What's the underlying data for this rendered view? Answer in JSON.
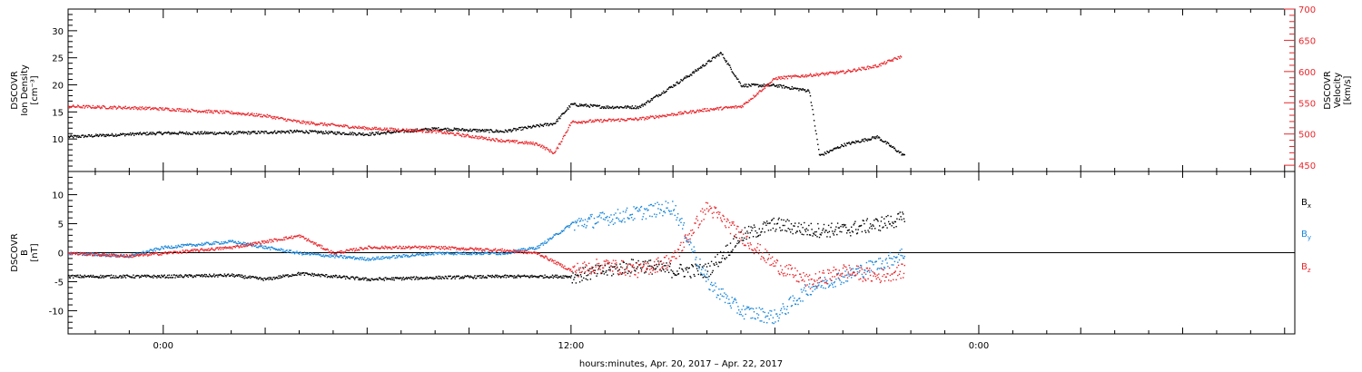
{
  "figure": {
    "xlabel": "hours:minutes, Apr. 20, 2017 – Apr. 22, 2017",
    "colors": {
      "axis": "#000000",
      "black_series": "#000000",
      "red_series": "#e8262b",
      "blue_series": "#1a86d8"
    }
  },
  "chart_data": [
    {
      "type": "scatter",
      "panel": "top",
      "xlabel": "hours:minutes, Apr. 20, 2017 – Apr. 22, 2017",
      "x_unit": "hours relative to Apr. 21, 2017 00:00",
      "xlim": [
        -2.8,
        33.3
      ],
      "x_ticks": [
        0,
        12,
        24
      ],
      "x_ticklabels": [
        "0:00",
        "12:00",
        "0:00"
      ],
      "left_axis": {
        "label_lines": [
          "DSCOVR",
          "Ion Density",
          "[cm⁻³]"
        ],
        "ylim": [
          4,
          34
        ],
        "ticks": [
          10,
          15,
          20,
          25,
          30
        ],
        "ticklabels": [
          "10",
          "15",
          "20",
          "25",
          "30"
        ]
      },
      "right_axis": {
        "label_lines": [
          "DSCOVR",
          "Velocity",
          "[km/s]"
        ],
        "ylim": [
          440,
          700
        ],
        "ticks": [
          450,
          500,
          550,
          600,
          650,
          700
        ],
        "ticklabels": [
          "450",
          "500",
          "550",
          "600",
          "650",
          "700"
        ]
      },
      "series": [
        {
          "axis": "left",
          "color": "#000000",
          "x": [
            -2.8,
            -1,
            0,
            2,
            4,
            6,
            8,
            10,
            11.5,
            12,
            13,
            14,
            15.5,
            16.4,
            17,
            18,
            19,
            19.3,
            20,
            21,
            21.8
          ],
          "y": [
            10.5,
            11,
            11.2,
            11.2,
            11.5,
            11,
            12,
            11.5,
            13,
            16.5,
            16,
            16,
            22,
            26,
            20,
            20,
            19,
            7,
            9,
            10.5,
            7
          ]
        },
        {
          "axis": "right",
          "color": "#e8262b",
          "x": [
            -2.8,
            -1,
            0,
            1,
            2,
            3,
            4,
            6,
            8,
            10,
            11,
            11.5,
            12,
            14,
            16,
            17,
            18,
            19,
            20,
            21,
            21.7
          ],
          "y": [
            545,
            543,
            541,
            538,
            535,
            530,
            520,
            510,
            505,
            490,
            485,
            470,
            520,
            525,
            540,
            545,
            590,
            595,
            600,
            610,
            625
          ]
        }
      ]
    },
    {
      "type": "scatter",
      "panel": "bottom",
      "xlabel": "hours:minutes, Apr. 20, 2017 – Apr. 22, 2017",
      "x_unit": "hours relative to Apr. 21, 2017 00:00",
      "xlim": [
        -2.8,
        33.3
      ],
      "x_ticks": [
        0,
        12,
        24
      ],
      "x_ticklabels": [
        "0:00",
        "12:00",
        "0:00"
      ],
      "left_axis": {
        "label_lines": [
          "DSCOVR",
          "B",
          "[nT]"
        ],
        "ylim": [
          -14,
          14
        ],
        "ticks": [
          -10,
          -5,
          0,
          5,
          10
        ],
        "ticklabels": [
          "-10",
          "-5",
          "0",
          "5",
          "10"
        ]
      },
      "legend_position": "right",
      "series": [
        {
          "name": "Bx",
          "color": "#000000",
          "x": [
            -2.8,
            0,
            2,
            3,
            4,
            6,
            8,
            10,
            12,
            13,
            14,
            15,
            16,
            17,
            18,
            19,
            20,
            21,
            21.8
          ],
          "y": [
            -4,
            -4,
            -3.8,
            -4.5,
            -3.5,
            -4.5,
            -4.2,
            -4,
            -4,
            -3,
            -2,
            -3,
            -3,
            3,
            5,
            4,
            4,
            5,
            6
          ]
        },
        {
          "name": "By",
          "color": "#1a86d8",
          "x": [
            -2.8,
            -1,
            0,
            2,
            3,
            4,
            6,
            8,
            10,
            11,
            12,
            13,
            14,
            15,
            16,
            17,
            18,
            19,
            20,
            21,
            21.8
          ],
          "y": [
            0,
            -0.5,
            1,
            2,
            1,
            0,
            -1,
            0,
            0,
            1,
            5,
            6,
            7,
            8,
            -5,
            -10,
            -11,
            -6,
            -4,
            -2,
            0
          ]
        },
        {
          "name": "Bz",
          "color": "#e8262b",
          "x": [
            -2.8,
            -1,
            0,
            2,
            3,
            4,
            5,
            6,
            8,
            10,
            11,
            12,
            13,
            14,
            15,
            16,
            17,
            18,
            19,
            20,
            21,
            21.8
          ],
          "y": [
            0,
            -0.5,
            0,
            1,
            2,
            3,
            0,
            1,
            1,
            0.5,
            0,
            -3,
            -2,
            -3,
            -1,
            8,
            3,
            -2,
            -5,
            -3,
            -4,
            -3
          ]
        }
      ]
    }
  ]
}
